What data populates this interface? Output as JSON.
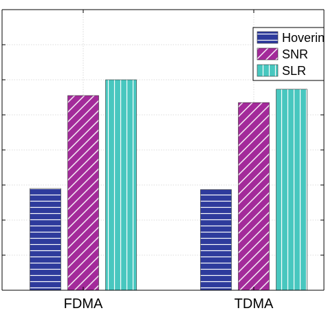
{
  "chart_data": {
    "type": "bar",
    "title": "",
    "xlabel": "",
    "ylabel": "",
    "categories": [
      "FDMA",
      "TDMA"
    ],
    "series": [
      {
        "name": "Hoverin",
        "values": [
          2.9,
          2.87
        ],
        "color": "#2e3b9c",
        "pattern": "horizontal-lines"
      },
      {
        "name": "SNR",
        "values": [
          5.55,
          5.35
        ],
        "color": "#a32a9a",
        "pattern": "diagonal-lines"
      },
      {
        "name": "SLR",
        "values": [
          6.0,
          5.73
        ],
        "color": "#48c7bf",
        "pattern": "vertical-lines"
      }
    ],
    "ylim": [
      0,
      8
    ],
    "grid": true,
    "legend_position": "top-right"
  }
}
